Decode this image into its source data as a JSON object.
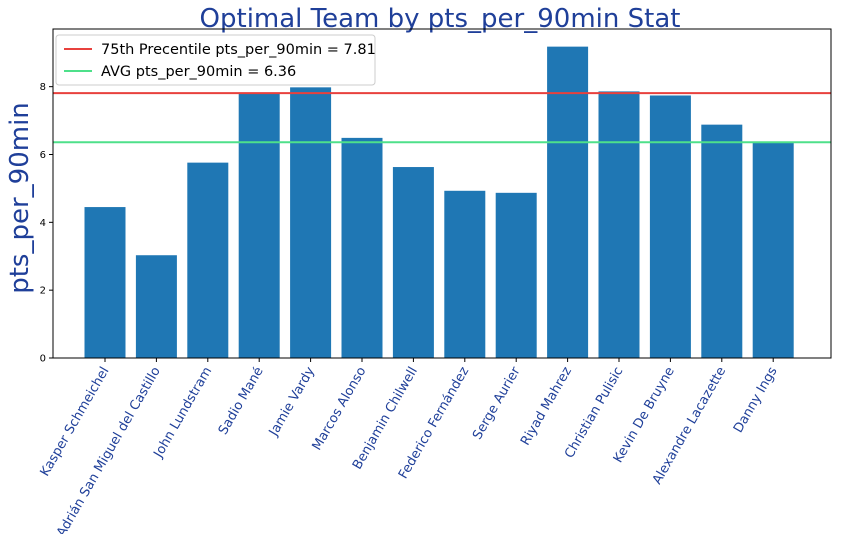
{
  "chart_data": {
    "type": "bar",
    "title": "Optimal Team by pts_per_90min Stat",
    "xlabel": "",
    "ylabel": "pts_per_90min",
    "categories": [
      "Kasper Schmeichel",
      "Adrián San Miguel del Castillo",
      "John Lundstram",
      "Sadio Mané",
      "Jamie Vardy",
      "Marcos Alonso",
      "Benjamin Chilwell",
      "Federico Fernández",
      "Serge Aurier",
      "Riyad Mahrez",
      "Christian Pulisic",
      "Kevin De Bruyne",
      "Alexandre Lacazette",
      "Danny Ings"
    ],
    "values": [
      4.45,
      3.03,
      5.76,
      7.82,
      7.98,
      6.49,
      5.63,
      4.93,
      4.87,
      9.18,
      7.86,
      7.74,
      6.88,
      6.35
    ],
    "ylim": [
      0,
      9.7
    ],
    "yticks": [
      0,
      2,
      4,
      6,
      8
    ],
    "bar_color": "#1f77b4",
    "reference_lines": [
      {
        "label": "75th Precentile pts_per_90min = 7.81",
        "value": 7.81,
        "color": "#e8413d"
      },
      {
        "label": "AVG pts_per_90min = 6.36",
        "value": 6.36,
        "color": "#4ee08a"
      }
    ],
    "legend_position": "upper-left",
    "grid": false,
    "text_color": "#1f3f99"
  }
}
